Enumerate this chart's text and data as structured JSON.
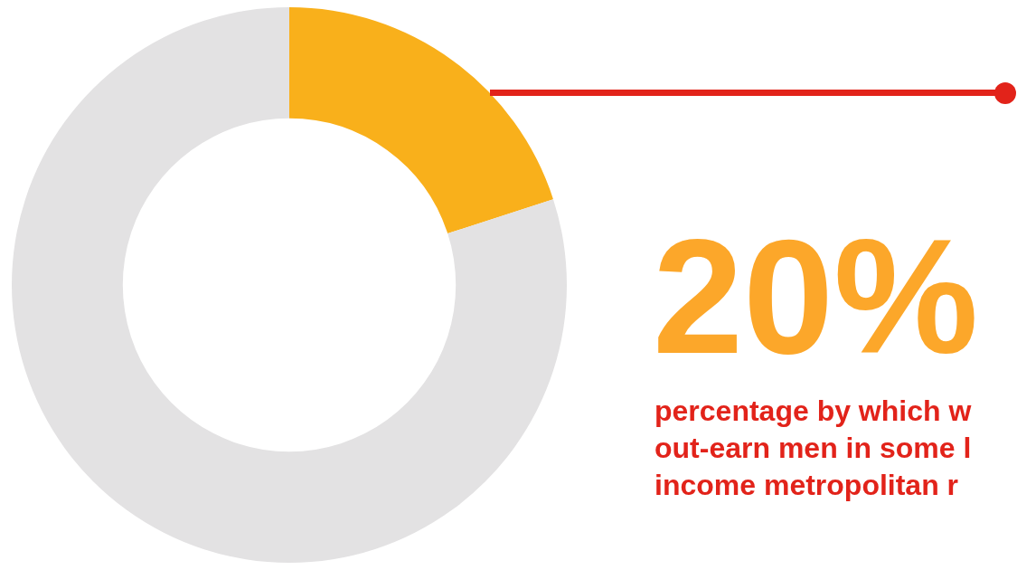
{
  "chart_data": {
    "type": "donut",
    "categories": [
      null,
      null
    ],
    "values": [
      20,
      80
    ],
    "colors": [
      "#f9b01b",
      "#e3e2e3"
    ],
    "value_labels": [
      "20%",
      null
    ],
    "annotations": [
      "percentage by which w\nout-earn men in some l\nincome metropolitan r"
    ]
  }
}
